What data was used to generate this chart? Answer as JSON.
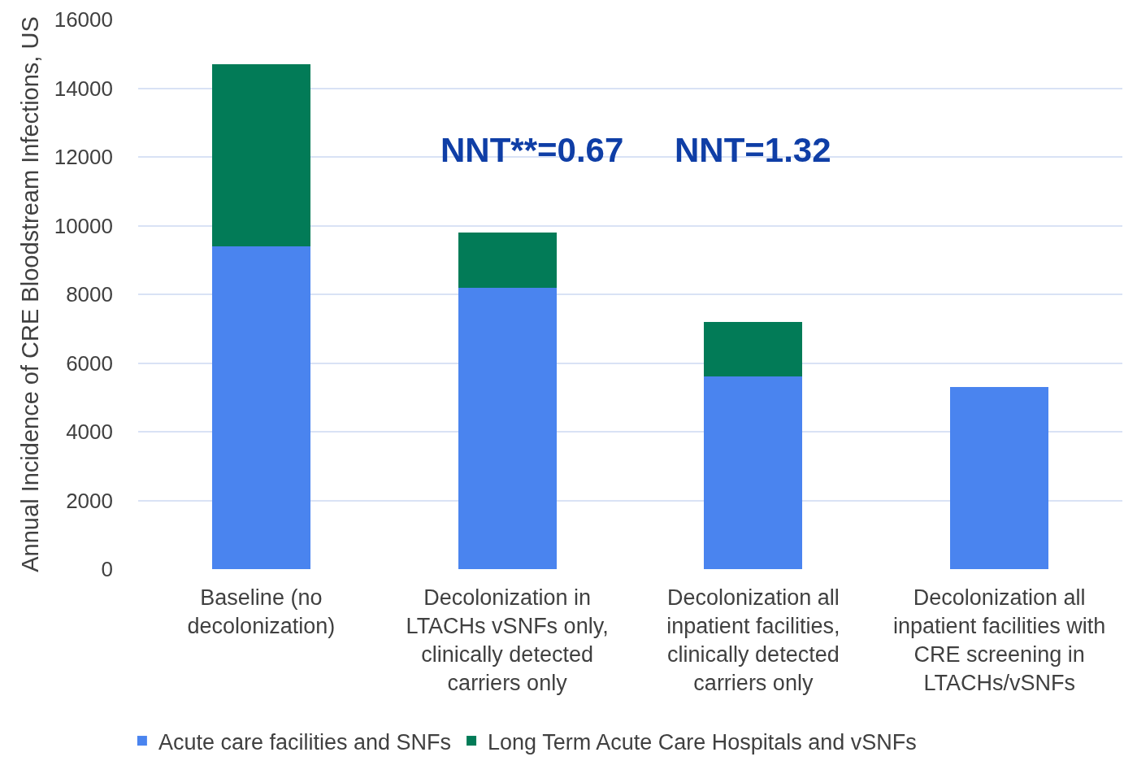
{
  "chart_data": {
    "type": "bar",
    "ylabel": "Annual Incidence of CRE Bloodstream Infections, US",
    "categories": [
      "Baseline (no decolonization)",
      "Decolonization in LTACHs vSNFs only, clinically detected carriers only",
      "Decolonization all inpatient facilities, clinically detected carriers only",
      "Decolonization all inpatient facilities with CRE screening in LTACHs/vSNFs"
    ],
    "series": [
      {
        "name": "Acute care facilities and SNFs",
        "color": "#4a84ef",
        "values": [
          9400,
          8200,
          5600,
          5300
        ]
      },
      {
        "name": "Long Term Acute Care Hospitals and vSNFs",
        "color": "#027b57",
        "values": [
          5300,
          1600,
          1600,
          null
        ]
      }
    ],
    "stacked": true,
    "ylim": [
      0,
      16000
    ],
    "yticks": [
      0,
      2000,
      4000,
      6000,
      8000,
      10000,
      12000,
      14000,
      16000
    ],
    "grid": "y",
    "legend": "bottom",
    "annotations": [
      "NNT**=0.67",
      "NNT=1.32"
    ]
  }
}
